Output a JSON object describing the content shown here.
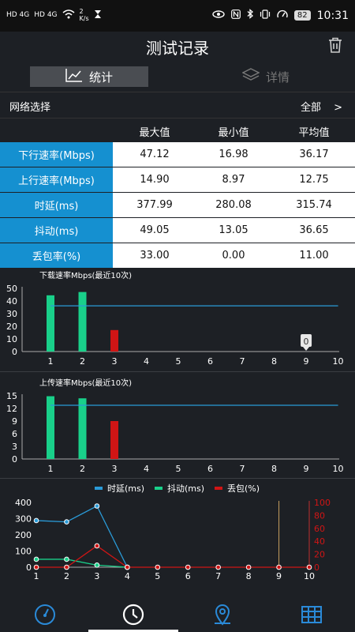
{
  "status": {
    "left1": "HD 4G",
    "left2": "HD 4G",
    "speed_top": "2",
    "speed_unit": "K/s",
    "battery": "82",
    "time": "10:31"
  },
  "header": {
    "title": "测试记录"
  },
  "tabs": [
    {
      "label": "统计",
      "active": true
    },
    {
      "label": "详情",
      "active": false
    }
  ],
  "network": {
    "label": "网络选择",
    "value": "全部",
    "chevron": ">"
  },
  "table": {
    "headers": [
      "最大值",
      "最小值",
      "平均值"
    ],
    "rows": [
      {
        "name": "下行速率(Mbps)",
        "max": "47.12",
        "min": "16.98",
        "avg": "36.17"
      },
      {
        "name": "上行速率(Mbps)",
        "max": "14.90",
        "min": "8.97",
        "avg": "12.75"
      },
      {
        "name": "时延(ms)",
        "max": "377.99",
        "min": "280.08",
        "avg": "315.74"
      },
      {
        "name": "抖动(ms)",
        "max": "49.05",
        "min": "13.05",
        "avg": "36.65"
      },
      {
        "name": "丢包率(%)",
        "max": "33.00",
        "min": "0.00",
        "avg": "11.00"
      }
    ]
  },
  "chart_data": [
    {
      "type": "bar",
      "title": "下载速率Mbps(最近10次)",
      "categories": [
        "1",
        "2",
        "3",
        "4",
        "5",
        "6",
        "7",
        "8",
        "9",
        "10"
      ],
      "values": [
        44.5,
        47.1,
        17.0,
        0,
        0,
        0,
        0,
        0,
        0,
        0
      ],
      "bar_colors": [
        "#19d08a",
        "#19d08a",
        "#d01515"
      ],
      "average": 36.17,
      "ylim": [
        0,
        50
      ],
      "yticks": [
        "0",
        "10",
        "20",
        "30",
        "40",
        "50"
      ],
      "tooltip": {
        "category": "9",
        "text": "0"
      },
      "colors": {
        "average_line": "#2a9bd8"
      }
    },
    {
      "type": "bar",
      "title": "上传速率Mbps(最近10次)",
      "categories": [
        "1",
        "2",
        "3",
        "4",
        "5",
        "6",
        "7",
        "8",
        "9",
        "10"
      ],
      "values": [
        14.9,
        14.4,
        9.0,
        0,
        0,
        0,
        0,
        0,
        0,
        0
      ],
      "bar_colors": [
        "#19d08a",
        "#19d08a",
        "#d01515"
      ],
      "average": 12.75,
      "ylim": [
        0,
        15
      ],
      "yticks": [
        "0",
        "3",
        "6",
        "9",
        "12",
        "15"
      ],
      "colors": {
        "average_line": "#2a9bd8"
      }
    },
    {
      "type": "line",
      "categories": [
        "1",
        "2",
        "3",
        "4",
        "5",
        "6",
        "7",
        "8",
        "9",
        "10"
      ],
      "legend": [
        {
          "name": "时延(ms)",
          "color": "#2a9bd8"
        },
        {
          "name": "抖动(ms)",
          "color": "#19d08a"
        },
        {
          "name": "丢包(%)",
          "color": "#d01515"
        }
      ],
      "series": [
        {
          "name": "时延(ms)",
          "axis": "left",
          "color": "#2a9bd8",
          "values": [
            288,
            280,
            378,
            0,
            null,
            null,
            null,
            null,
            null,
            null
          ]
        },
        {
          "name": "抖动(ms)",
          "axis": "left",
          "color": "#19d08a",
          "values": [
            49,
            49,
            13,
            0,
            null,
            null,
            null,
            null,
            null,
            null
          ]
        },
        {
          "name": "丢包(%)",
          "axis": "right",
          "color": "#d01515",
          "values": [
            0,
            0,
            33,
            0,
            0,
            0,
            0,
            0,
            0,
            0
          ]
        }
      ],
      "ylim_left": [
        0,
        400
      ],
      "ylim_right": [
        0,
        100
      ],
      "yticks_left": [
        "0",
        "100",
        "200",
        "300",
        "400"
      ],
      "yticks_right": [
        "0",
        "20",
        "40",
        "60",
        "80",
        "100"
      ],
      "marker_line": {
        "category": "9",
        "color": "#c8a060"
      }
    }
  ],
  "nav": [
    {
      "name": "speedometer",
      "active": false
    },
    {
      "name": "clock",
      "active": true
    },
    {
      "name": "location",
      "active": false
    },
    {
      "name": "table",
      "active": false
    }
  ]
}
